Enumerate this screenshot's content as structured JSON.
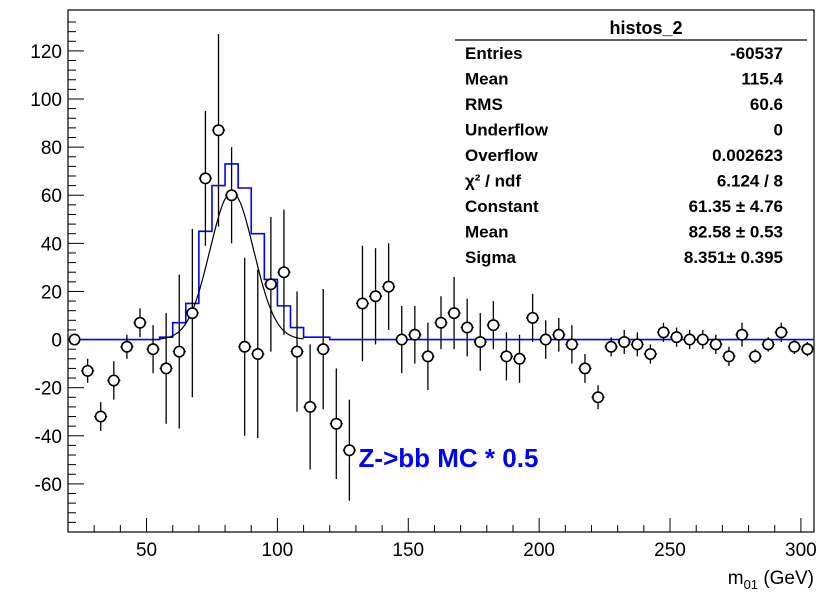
{
  "chart_data": {
    "type": "scatter",
    "xlim": [
      20,
      305
    ],
    "ylim": [
      -80,
      137
    ],
    "xlabel_main": "m",
    "xlabel_sub": "01",
    "xlabel_unit": " (GeV)",
    "x_ticks": [
      50,
      100,
      150,
      200,
      250,
      300
    ],
    "x_tick_labels": [
      "50",
      "100",
      "150",
      "200",
      "250",
      "300"
    ],
    "y_ticks": [
      -60,
      -40,
      -20,
      0,
      20,
      40,
      60,
      80,
      100,
      120
    ],
    "y_tick_labels": [
      "-60",
      "-40",
      "-20",
      "0",
      "20",
      "40",
      "60",
      "80",
      "100",
      "120"
    ],
    "grid": false,
    "legend": "none",
    "annotation": "Z->bb MC * 0.5",
    "colors": {
      "data": "#000000",
      "mc": "#0000ff",
      "fit": "#000000",
      "annotation": "#0000ff"
    },
    "stats_box": {
      "title": "histos_2",
      "rows": [
        {
          "label": "Entries",
          "value": "-60537"
        },
        {
          "label": "Mean",
          "value": "115.4"
        },
        {
          "label": "RMS",
          "value": "60.6"
        },
        {
          "label": "Underflow",
          "value": "0"
        },
        {
          "label": "Overflow",
          "value": "0.002623"
        },
        {
          "label": "χ² / ndf",
          "value": "6.124 / 8"
        },
        {
          "label": "Constant",
          "value": "61.35 ± 4.76"
        },
        {
          "label": "Mean",
          "value": "82.58 ± 0.53"
        },
        {
          "label": "Sigma",
          "value": "8.351± 0.395"
        }
      ]
    },
    "data_points": [
      {
        "x": 22.5,
        "y": 0,
        "err": 0
      },
      {
        "x": 27.5,
        "y": -13,
        "err": 5
      },
      {
        "x": 32.5,
        "y": -32,
        "err": 6
      },
      {
        "x": 37.5,
        "y": -17,
        "err": 8
      },
      {
        "x": 42.5,
        "y": -3,
        "err": 5
      },
      {
        "x": 47.5,
        "y": 7,
        "err": 6
      },
      {
        "x": 52.5,
        "y": -4,
        "err": 10
      },
      {
        "x": 57.5,
        "y": -12,
        "err": 23
      },
      {
        "x": 62.5,
        "y": -5,
        "err": 32
      },
      {
        "x": 67.5,
        "y": 11,
        "err": 35
      },
      {
        "x": 72.5,
        "y": 67,
        "err": 28
      },
      {
        "x": 77.5,
        "y": 87,
        "err": 40
      },
      {
        "x": 82.5,
        "y": 60,
        "err": 20
      },
      {
        "x": 87.5,
        "y": -3,
        "err": 37
      },
      {
        "x": 92.5,
        "y": -6,
        "err": 35
      },
      {
        "x": 97.5,
        "y": 23,
        "err": 28
      },
      {
        "x": 102.5,
        "y": 28,
        "err": 26
      },
      {
        "x": 107.5,
        "y": -5,
        "err": 25
      },
      {
        "x": 112.5,
        "y": -28,
        "err": 26
      },
      {
        "x": 117.5,
        "y": -4,
        "err": 25
      },
      {
        "x": 122.5,
        "y": -35,
        "err": 23
      },
      {
        "x": 127.5,
        "y": -46,
        "err": 21
      },
      {
        "x": 132.5,
        "y": 15,
        "err": 24
      },
      {
        "x": 137.5,
        "y": 18,
        "err": 20
      },
      {
        "x": 142.5,
        "y": 22,
        "err": 18
      },
      {
        "x": 147.5,
        "y": 0,
        "err": 14
      },
      {
        "x": 152.5,
        "y": 2,
        "err": 12
      },
      {
        "x": 157.5,
        "y": -7,
        "err": 14
      },
      {
        "x": 162.5,
        "y": 7,
        "err": 11
      },
      {
        "x": 167.5,
        "y": 11,
        "err": 15
      },
      {
        "x": 172.5,
        "y": 5,
        "err": 12
      },
      {
        "x": 177.5,
        "y": -1,
        "err": 12
      },
      {
        "x": 182.5,
        "y": 6,
        "err": 10
      },
      {
        "x": 187.5,
        "y": -7,
        "err": 10
      },
      {
        "x": 192.5,
        "y": -8,
        "err": 10
      },
      {
        "x": 197.5,
        "y": 9,
        "err": 10
      },
      {
        "x": 202.5,
        "y": 0,
        "err": 8
      },
      {
        "x": 207.5,
        "y": 2,
        "err": 7
      },
      {
        "x": 212.5,
        "y": -2,
        "err": 8
      },
      {
        "x": 217.5,
        "y": -12,
        "err": 6
      },
      {
        "x": 222.5,
        "y": -24,
        "err": 5
      },
      {
        "x": 227.5,
        "y": -3,
        "err": 4
      },
      {
        "x": 232.5,
        "y": -1,
        "err": 5
      },
      {
        "x": 237.5,
        "y": -2,
        "err": 5
      },
      {
        "x": 242.5,
        "y": -6,
        "err": 4
      },
      {
        "x": 247.5,
        "y": 3,
        "err": 4
      },
      {
        "x": 252.5,
        "y": 1,
        "err": 4
      },
      {
        "x": 257.5,
        "y": 0,
        "err": 4
      },
      {
        "x": 262.5,
        "y": 0,
        "err": 4
      },
      {
        "x": 267.5,
        "y": -2,
        "err": 4
      },
      {
        "x": 272.5,
        "y": -7,
        "err": 4
      },
      {
        "x": 277.5,
        "y": 2,
        "err": 5
      },
      {
        "x": 282.5,
        "y": -7,
        "err": 3
      },
      {
        "x": 287.5,
        "y": -2,
        "err": 3
      },
      {
        "x": 292.5,
        "y": 3,
        "err": 4
      },
      {
        "x": 297.5,
        "y": -3,
        "err": 3
      },
      {
        "x": 302.5,
        "y": -4,
        "err": 3
      }
    ],
    "mc_histogram": {
      "bin_width": 5,
      "bins": [
        {
          "x0": 20,
          "y": 0
        },
        {
          "x0": 25,
          "y": 0
        },
        {
          "x0": 30,
          "y": 0
        },
        {
          "x0": 35,
          "y": 0
        },
        {
          "x0": 40,
          "y": 0
        },
        {
          "x0": 45,
          "y": 0
        },
        {
          "x0": 50,
          "y": 0
        },
        {
          "x0": 55,
          "y": 1
        },
        {
          "x0": 60,
          "y": 7
        },
        {
          "x0": 65,
          "y": 15
        },
        {
          "x0": 70,
          "y": 45
        },
        {
          "x0": 75,
          "y": 64
        },
        {
          "x0": 80,
          "y": 73
        },
        {
          "x0": 85,
          "y": 63
        },
        {
          "x0": 90,
          "y": 44
        },
        {
          "x0": 95,
          "y": 25
        },
        {
          "x0": 100,
          "y": 14
        },
        {
          "x0": 105,
          "y": 5
        },
        {
          "x0": 110,
          "y": 1
        },
        {
          "x0": 115,
          "y": 1
        },
        {
          "x0": 120,
          "y": 0
        },
        {
          "x0": 125,
          "y": 0
        },
        {
          "x0": 130,
          "y": 0
        },
        {
          "x0": 135,
          "y": 0
        },
        {
          "x0": 140,
          "y": 0
        },
        {
          "x0": 145,
          "y": 0
        }
      ],
      "tail_end": 305
    },
    "gaussian_fit": {
      "constant": 61.35,
      "mean": 82.58,
      "sigma": 8.351,
      "x_range": [
        55,
        110
      ]
    }
  }
}
